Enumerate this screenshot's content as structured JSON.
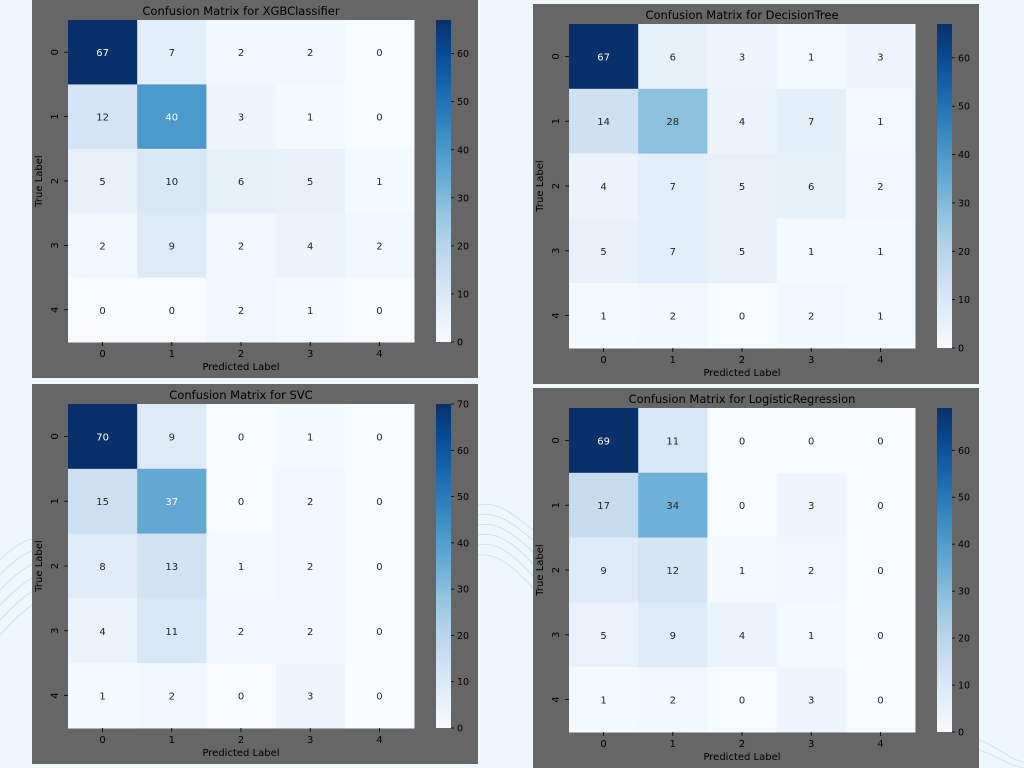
{
  "colors": {
    "cmap_low": "#f7fbff",
    "cmap_high": "#08306b",
    "panel_bg": "#666666",
    "page_bg": "#eef7fb"
  },
  "chart_data": [
    {
      "type": "heatmap",
      "title": "Confusion Matrix for XGBClassifier",
      "xlabel": "Predicted Label",
      "ylabel": "True Label",
      "x_ticks": [
        "0",
        "1",
        "2",
        "3",
        "4"
      ],
      "y_ticks": [
        "0",
        "1",
        "2",
        "3",
        "4"
      ],
      "values": [
        [
          67,
          7,
          2,
          2,
          0
        ],
        [
          12,
          40,
          3,
          1,
          0
        ],
        [
          5,
          10,
          6,
          5,
          1
        ],
        [
          2,
          9,
          2,
          4,
          2
        ],
        [
          0,
          0,
          2,
          1,
          0
        ]
      ],
      "colorbar": {
        "min": 0,
        "max": 67,
        "ticks": [
          0,
          10,
          20,
          30,
          40,
          50,
          60
        ]
      }
    },
    {
      "type": "heatmap",
      "title": "Confusion Matrix for DecisionTree",
      "xlabel": "Predicted Label",
      "ylabel": "True Label",
      "x_ticks": [
        "0",
        "1",
        "2",
        "3",
        "4"
      ],
      "y_ticks": [
        "0",
        "1",
        "2",
        "3",
        "4"
      ],
      "values": [
        [
          67,
          6,
          3,
          1,
          3
        ],
        [
          14,
          28,
          4,
          7,
          1
        ],
        [
          4,
          7,
          5,
          6,
          2
        ],
        [
          5,
          7,
          5,
          1,
          1
        ],
        [
          1,
          2,
          0,
          2,
          1
        ]
      ],
      "colorbar": {
        "min": 0,
        "max": 67,
        "ticks": [
          0,
          10,
          20,
          30,
          40,
          50,
          60
        ]
      }
    },
    {
      "type": "heatmap",
      "title": "Confusion Matrix for SVC",
      "xlabel": "Predicted Label",
      "ylabel": "True Label",
      "x_ticks": [
        "0",
        "1",
        "2",
        "3",
        "4"
      ],
      "y_ticks": [
        "0",
        "1",
        "2",
        "3",
        "4"
      ],
      "values": [
        [
          70,
          9,
          0,
          1,
          0
        ],
        [
          15,
          37,
          0,
          2,
          0
        ],
        [
          8,
          13,
          1,
          2,
          0
        ],
        [
          4,
          11,
          2,
          2,
          0
        ],
        [
          1,
          2,
          0,
          3,
          0
        ]
      ],
      "colorbar": {
        "min": 0,
        "max": 70,
        "ticks": [
          0,
          10,
          20,
          30,
          40,
          50,
          60,
          70
        ]
      }
    },
    {
      "type": "heatmap",
      "title": "Confusion Matrix for LogisticRegression",
      "xlabel": "Predicted Label",
      "ylabel": "True Label",
      "x_ticks": [
        "0",
        "1",
        "2",
        "3",
        "4"
      ],
      "y_ticks": [
        "0",
        "1",
        "2",
        "3",
        "4"
      ],
      "values": [
        [
          69,
          11,
          0,
          0,
          0
        ],
        [
          17,
          34,
          0,
          3,
          0
        ],
        [
          9,
          12,
          1,
          2,
          0
        ],
        [
          5,
          9,
          4,
          1,
          0
        ],
        [
          1,
          2,
          0,
          3,
          0
        ]
      ],
      "colorbar": {
        "min": 0,
        "max": 69,
        "ticks": [
          0,
          10,
          20,
          30,
          40,
          50,
          60
        ]
      }
    }
  ]
}
